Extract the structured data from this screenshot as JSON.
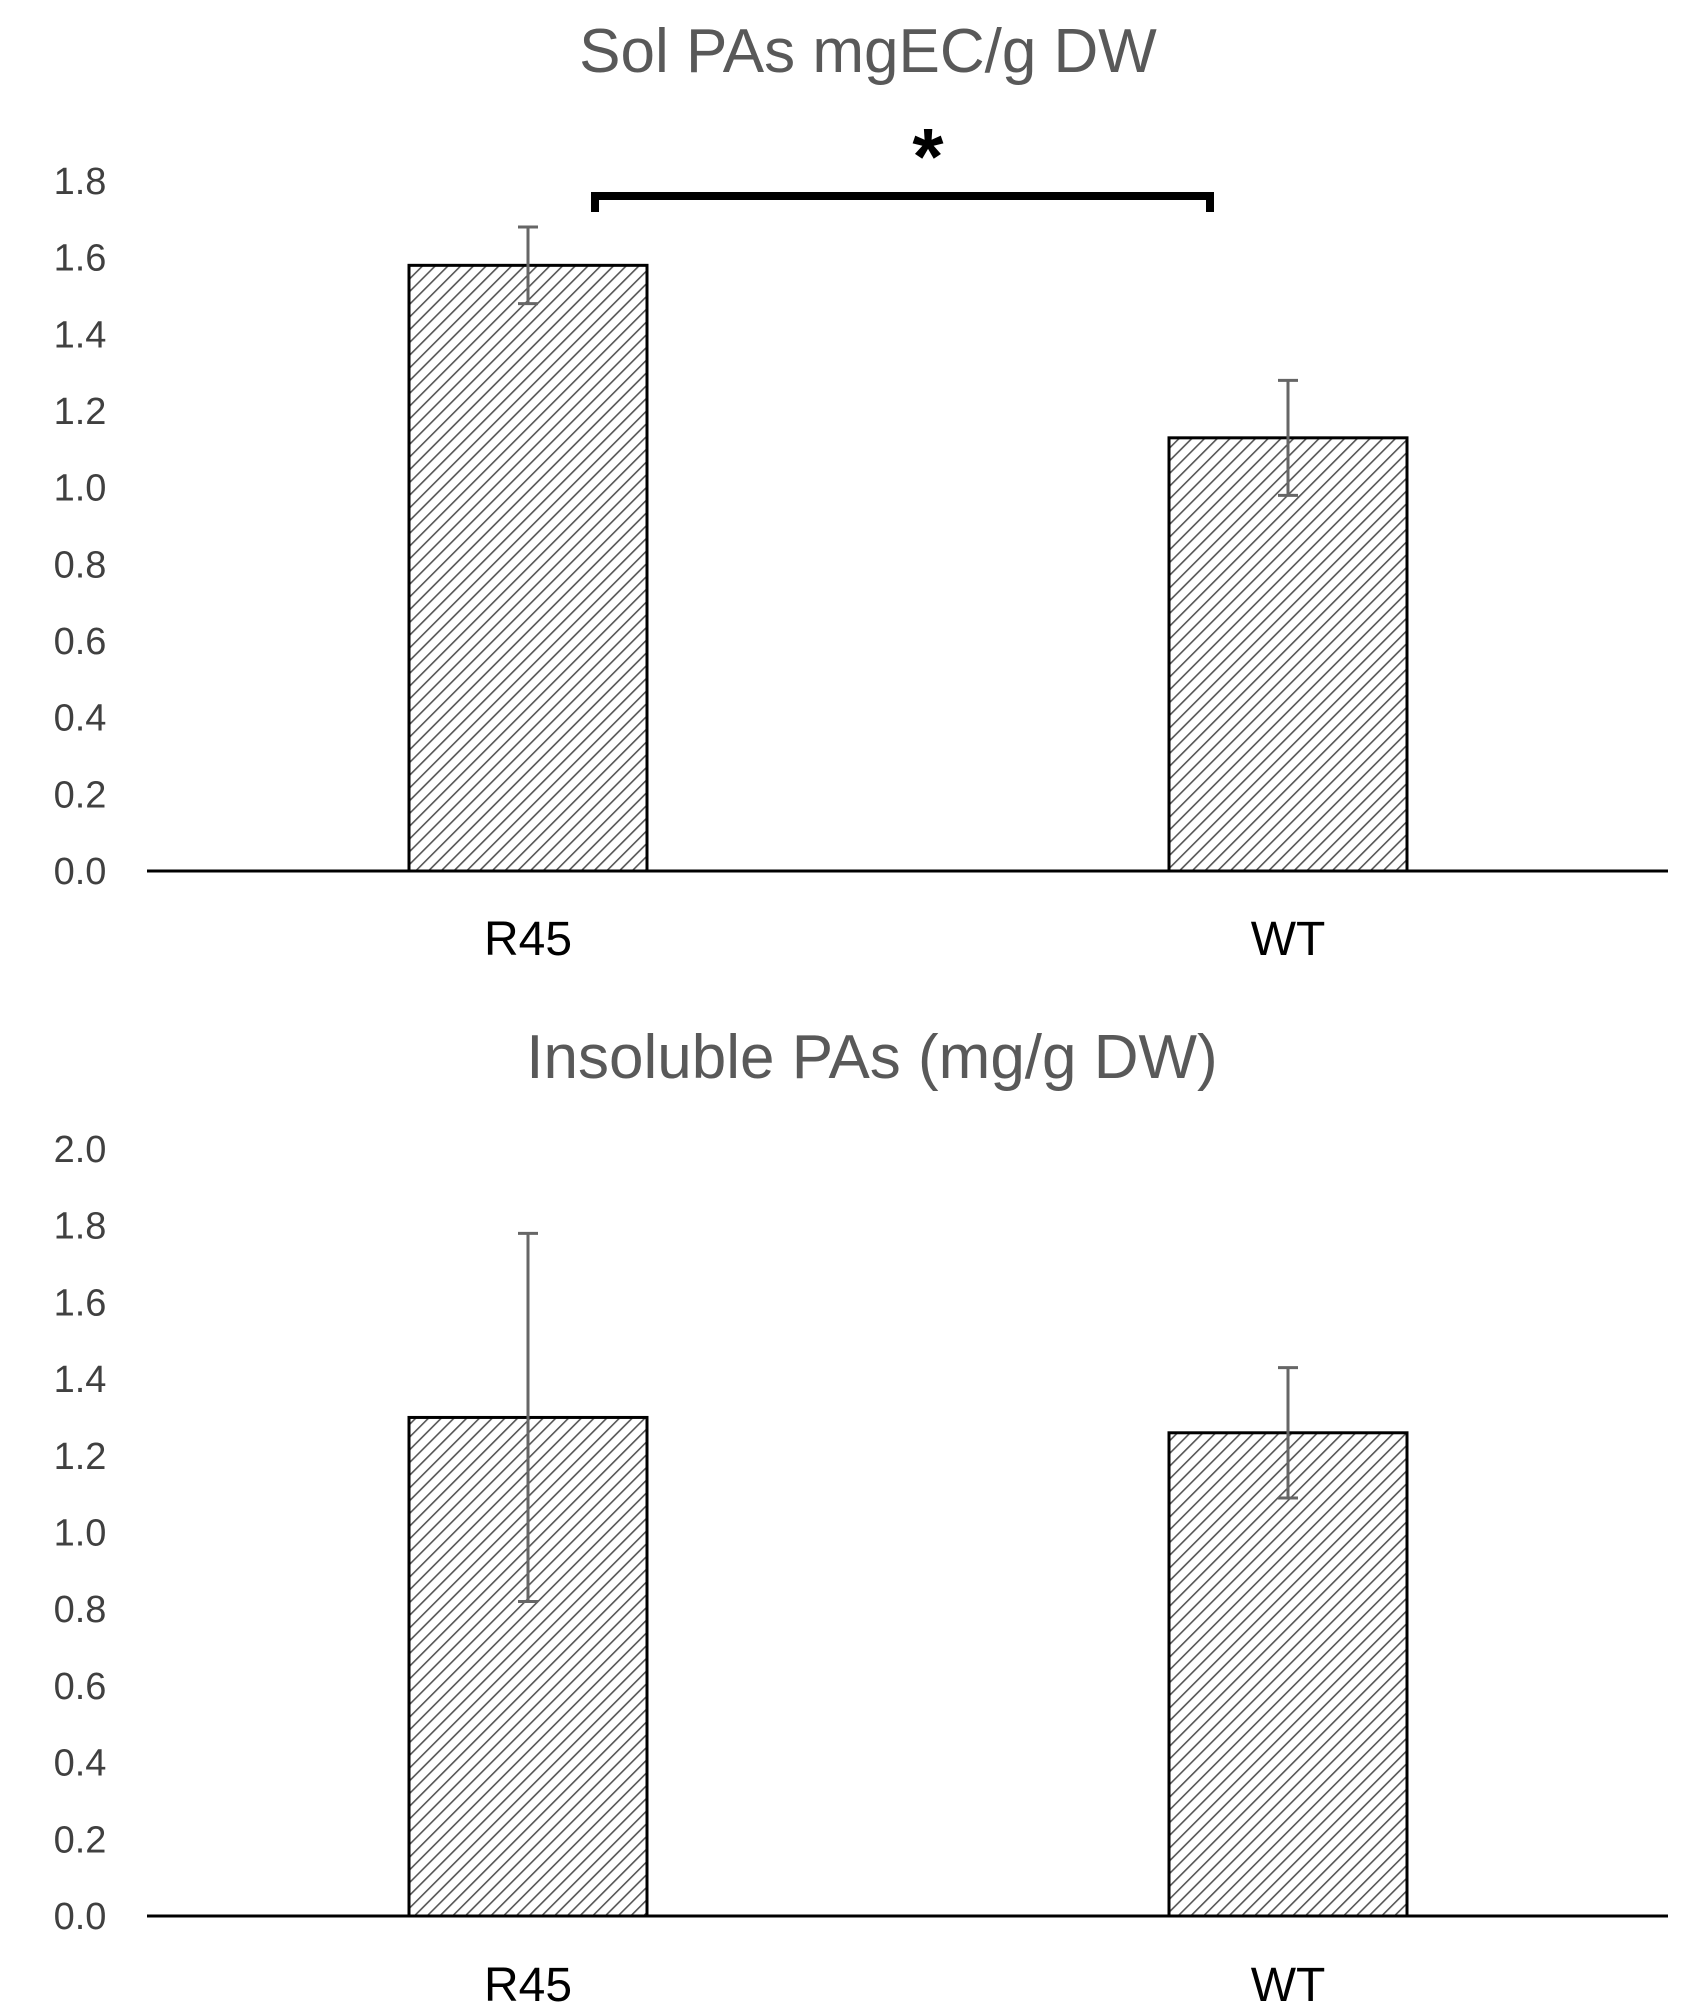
{
  "chart_data": [
    {
      "type": "bar",
      "title": "Sol PAs mgEC/g DW",
      "xlabel": "",
      "ylabel": "",
      "categories": [
        "R45",
        "WT"
      ],
      "values": [
        1.58,
        1.13
      ],
      "error": [
        0.1,
        0.15
      ],
      "ylim": [
        0,
        1.8
      ],
      "yticks": [
        "0.0",
        "0.2",
        "0.4",
        "0.6",
        "0.8",
        "1.0",
        "1.2",
        "1.4",
        "1.6",
        "1.8"
      ],
      "grid": false,
      "legend": "none",
      "annotation": {
        "text": "*",
        "between": [
          "R45",
          "WT"
        ]
      }
    },
    {
      "type": "bar",
      "title": "Insoluble PAs (mg/g DW)",
      "xlabel": "",
      "ylabel": "",
      "categories": [
        "R45",
        "WT"
      ],
      "values": [
        1.3,
        1.26
      ],
      "error": [
        0.48,
        0.17
      ],
      "ylim": [
        0,
        2.0
      ],
      "yticks": [
        "0.0",
        "0.2",
        "0.4",
        "0.6",
        "0.8",
        "1.0",
        "1.2",
        "1.4",
        "1.6",
        "1.8",
        "2.0"
      ],
      "grid": false,
      "legend": "none"
    }
  ],
  "colors": {
    "bar_fill": "#ffffff",
    "hatch": "#555555",
    "bar_stroke": "#000000",
    "error_bar": "#666666",
    "title": "#595959",
    "axis": "#000000"
  }
}
